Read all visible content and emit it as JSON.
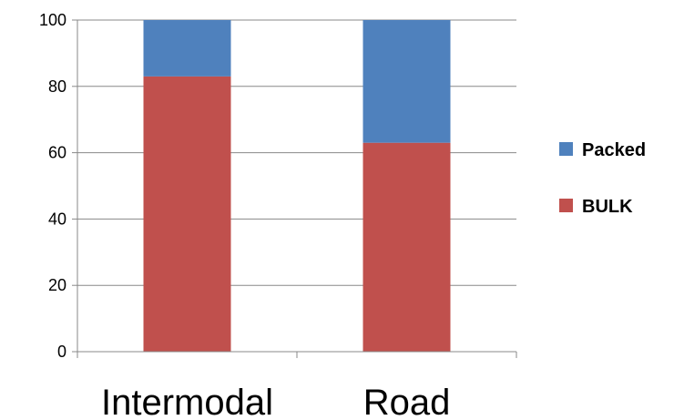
{
  "chart_data": {
    "type": "bar",
    "stacked": true,
    "categories": [
      "Intermodal",
      "Road"
    ],
    "series": [
      {
        "name": "BULK",
        "values": [
          83,
          63
        ],
        "color": "#C0504D"
      },
      {
        "name": "Packed",
        "values": [
          17,
          37
        ],
        "color": "#4F81BD"
      }
    ],
    "title": "",
    "xlabel": "",
    "ylabel": "",
    "ylim": [
      0,
      100
    ],
    "yticks": [
      0,
      20,
      40,
      60,
      80,
      100
    ],
    "grid": true,
    "legend": {
      "placement": "right",
      "entries": [
        {
          "name": "Packed",
          "color": "#4F81BD"
        },
        {
          "name": "BULK",
          "color": "#C0504D"
        }
      ]
    }
  }
}
